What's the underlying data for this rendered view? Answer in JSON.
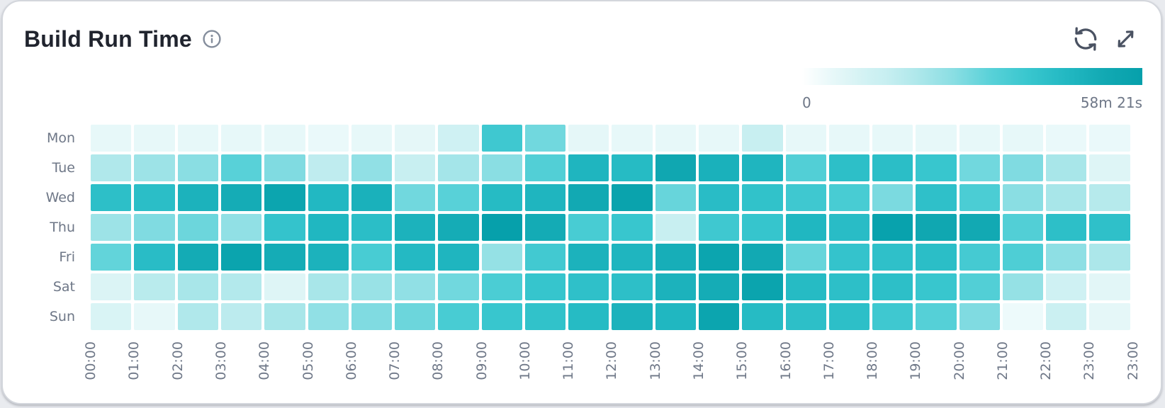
{
  "card": {
    "title": "Build Run Time",
    "background": "#ffffff",
    "border_color": "#d3d6dc"
  },
  "header": {
    "info_icon": "info-circle",
    "actions": [
      {
        "icon": "refresh-icon",
        "label": "refresh"
      },
      {
        "icon": "expand-icon",
        "label": "expand"
      }
    ],
    "icon_color": "#4a5262"
  },
  "legend": {
    "min_label": "0",
    "max_label": "58m 21s"
  },
  "chart_data": {
    "type": "heatmap",
    "title": "Build Run Time",
    "rows": [
      "Mon",
      "Tue",
      "Wed",
      "Thu",
      "Fri",
      "Sat",
      "Sun"
    ],
    "columns": [
      "00:00",
      "01:00",
      "02:00",
      "03:00",
      "04:00",
      "05:00",
      "06:00",
      "07:00",
      "08:00",
      "09:00",
      "10:00",
      "11:00",
      "12:00",
      "13:00",
      "14:00",
      "15:00",
      "16:00",
      "17:00",
      "18:00",
      "19:00",
      "20:00",
      "21:00",
      "22:00",
      "23:00"
    ],
    "x_tick_labels": [
      "00:00",
      "01:00",
      "02:00",
      "03:00",
      "04:00",
      "05:00",
      "06:00",
      "07:00",
      "08:00",
      "09:00",
      "10:00",
      "11:00",
      "12:00",
      "13:00",
      "14:00",
      "15:00",
      "16:00",
      "17:00",
      "18:00",
      "19:00",
      "20:00",
      "21:00",
      "22:00",
      "23:00",
      "23:00"
    ],
    "unit": "seconds",
    "value_range": [
      0,
      3501
    ],
    "max_value_label": "58m 21s",
    "legend_position": "top-right",
    "grid": false,
    "color_scale": {
      "positions": [
        0,
        0.089,
        0.133,
        0.2,
        0.244,
        0.333,
        0.444,
        0.556,
        0.667,
        0.778,
        0.889,
        1.0
      ],
      "colors": [
        "#ffffff",
        "#e7f8f9",
        "#def5f6",
        "#cff1f3",
        "#c8eff1",
        "#b0e8eb",
        "#8adee3",
        "#58d1d8",
        "#38c6ce",
        "#22b8c2",
        "#12a9b3",
        "#06a0ab"
      ]
    },
    "series": [
      {
        "name": "Mon",
        "values": [
          311,
          311,
          311,
          311,
          311,
          272,
          311,
          350,
          700,
          2256,
          1750,
          350,
          311,
          311,
          311,
          856,
          311,
          311,
          311,
          311,
          311,
          311,
          272,
          272
        ]
      },
      {
        "name": "Tue",
        "values": [
          1167,
          1361,
          1556,
          1945,
          1634,
          972,
          1478,
          856,
          1284,
          1556,
          2023,
          2801,
          2645,
          3190,
          2917,
          2801,
          2023,
          2528,
          2567,
          2334,
          1750,
          1634,
          1245,
          467
        ]
      },
      {
        "name": "Wed",
        "values": [
          2528,
          2567,
          2879,
          3034,
          3306,
          2723,
          2917,
          1750,
          1945,
          2645,
          2801,
          3112,
          3384,
          1828,
          2606,
          2451,
          2256,
          2140,
          1673,
          2490,
          2101,
          1556,
          1245,
          1089
        ]
      },
      {
        "name": "Thu",
        "values": [
          1361,
          1634,
          1789,
          1478,
          2412,
          2762,
          2567,
          2879,
          3034,
          3501,
          3073,
          2140,
          2334,
          856,
          2256,
          2373,
          2762,
          2606,
          3423,
          3190,
          3112,
          2023,
          2528,
          2490
        ]
      },
      {
        "name": "Fri",
        "values": [
          1867,
          2606,
          3073,
          3345,
          3034,
          2879,
          2140,
          2684,
          2801,
          1439,
          2217,
          2879,
          2801,
          2995,
          3306,
          3112,
          1828,
          2412,
          2490,
          2567,
          2178,
          2062,
          1517,
          1206
        ]
      },
      {
        "name": "Sat",
        "values": [
          506,
          1050,
          1245,
          1128,
          467,
          1245,
          1400,
          1478,
          1750,
          2101,
          2373,
          2490,
          2528,
          2879,
          3034,
          3345,
          2645,
          2528,
          2528,
          2334,
          2023,
          1439,
          700,
          389
        ]
      },
      {
        "name": "Sun",
        "values": [
          545,
          311,
          1167,
          1011,
          1245,
          1478,
          1634,
          1789,
          2140,
          2334,
          2451,
          2645,
          2879,
          2762,
          3306,
          2645,
          2528,
          2528,
          2256,
          1984,
          1634,
          233,
          778,
          350
        ]
      }
    ]
  }
}
